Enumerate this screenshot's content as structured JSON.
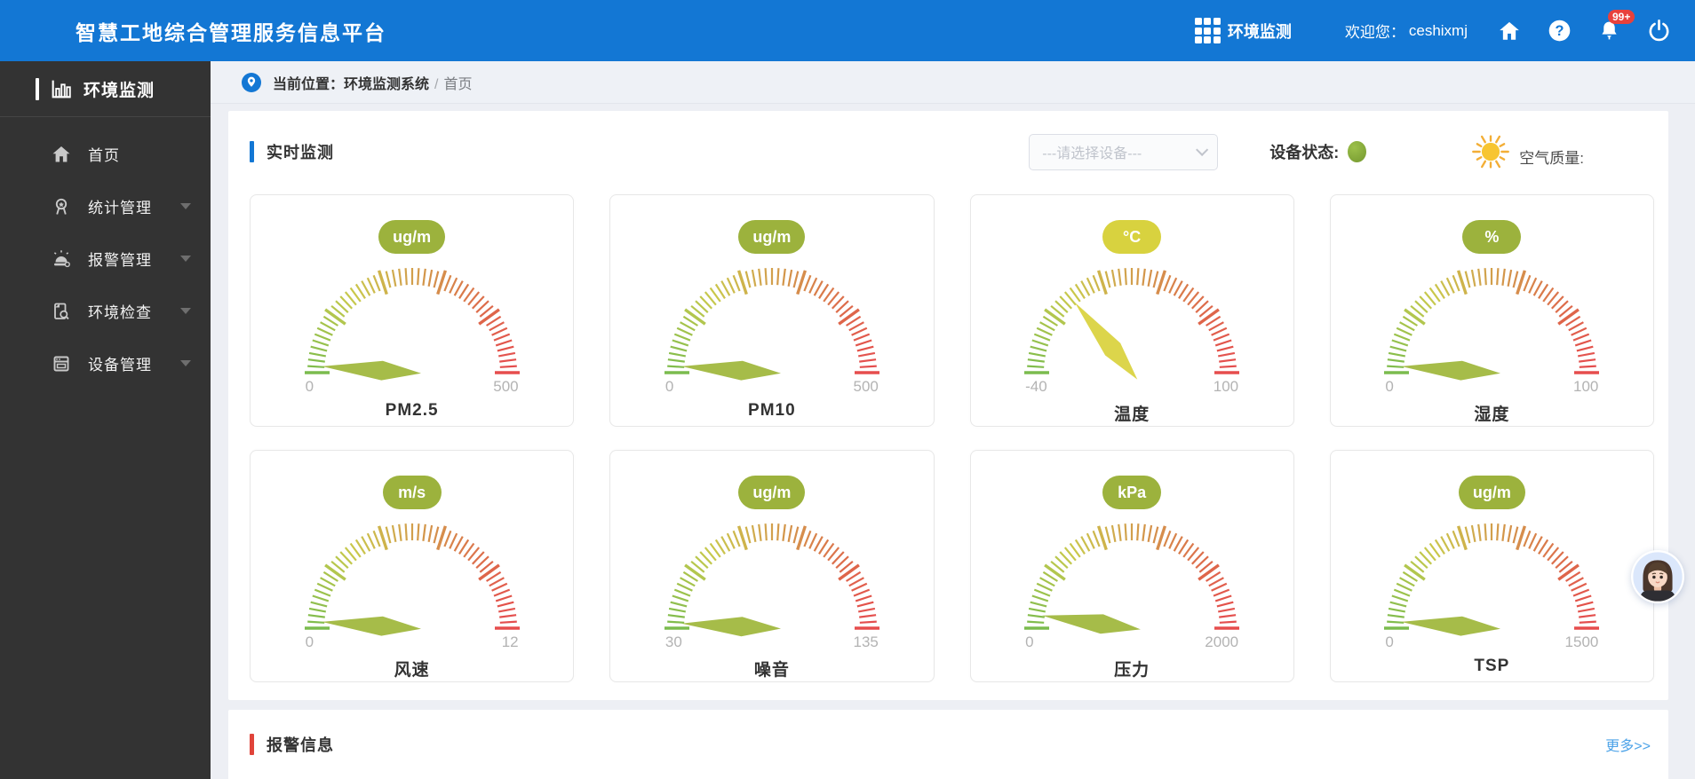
{
  "header": {
    "title": "智慧工地综合管理服务信息平台",
    "app_switcher_label": "环境监测",
    "welcome_label": "欢迎您：",
    "username": "ceshixmj",
    "notification_badge": "99+"
  },
  "sidebar": {
    "brand": "环境监测",
    "items": [
      {
        "label": "首页",
        "icon": "home-icon",
        "expandable": false
      },
      {
        "label": "统计管理",
        "icon": "statistics-icon",
        "expandable": true
      },
      {
        "label": "报警管理",
        "icon": "alarm-icon",
        "expandable": true
      },
      {
        "label": "环境检查",
        "icon": "inspection-icon",
        "expandable": true
      },
      {
        "label": "设备管理",
        "icon": "device-icon",
        "expandable": true
      }
    ]
  },
  "breadcrumb": {
    "prefix": "当前位置：",
    "system": "环境监测系统",
    "separator": "/",
    "current": "首页"
  },
  "monitor": {
    "section_title": "实时监测",
    "device_select_placeholder": "---请选择设备---",
    "device_status_label": "设备状态:",
    "device_status_color": "#7fa33c",
    "air_quality_label": "空气质量:"
  },
  "alarm": {
    "section_title": "报警信息",
    "more_label": "更多>>"
  },
  "colors": {
    "header_blue": "#1377d4",
    "sidebar_dark": "#333333",
    "accent_blue": "#1377d4",
    "accent_red": "#e0443a",
    "link_blue": "#4da3e8",
    "olive_green": "#9cb23d",
    "badge_yellow": "#d8d23f"
  },
  "chart_data": [
    {
      "type": "gauge",
      "title": "PM2.5",
      "unit": "ug/m",
      "min": 0,
      "max": 500,
      "value": 0,
      "needle_angle_deg": 176,
      "needle_color": "#a6bc49",
      "badge_color": "#9cb23d",
      "tick_gradient": [
        "#8db04f",
        "#ddd84e",
        "#f09a4e",
        "#e65050"
      ]
    },
    {
      "type": "gauge",
      "title": "PM10",
      "unit": "ug/m",
      "min": 0,
      "max": 500,
      "value": 0,
      "needle_angle_deg": 176,
      "needle_color": "#a6bc49",
      "badge_color": "#9cb23d",
      "tick_gradient": [
        "#8db04f",
        "#ddd84e",
        "#f09a4e",
        "#e65050"
      ]
    },
    {
      "type": "gauge",
      "title": "温度",
      "unit": "°C",
      "min": -40,
      "max": 100,
      "value": 0,
      "needle_angle_deg": 129,
      "needle_color": "#dcd54b",
      "badge_color": "#d8d23f",
      "tick_gradient": [
        "#8db04f",
        "#ddd84e",
        "#f09a4e",
        "#e65050"
      ]
    },
    {
      "type": "gauge",
      "title": "湿度",
      "unit": "%",
      "min": 0,
      "max": 100,
      "value": 0,
      "needle_angle_deg": 176,
      "needle_color": "#a6bc49",
      "badge_color": "#9cb23d",
      "tick_gradient": [
        "#8db04f",
        "#ddd84e",
        "#f09a4e",
        "#e65050"
      ]
    },
    {
      "type": "gauge",
      "title": "风速",
      "unit": "m/s",
      "min": 0,
      "max": 12,
      "value": 0,
      "needle_angle_deg": 176,
      "needle_color": "#a6bc49",
      "badge_color": "#9cb23d",
      "tick_gradient": [
        "#8db04f",
        "#ddd84e",
        "#f09a4e",
        "#e65050"
      ]
    },
    {
      "type": "gauge",
      "title": "噪音",
      "unit": "ug/m",
      "min": 30,
      "max": 135,
      "value": 30,
      "needle_angle_deg": 177,
      "needle_color": "#a6bc49",
      "badge_color": "#9cb23d",
      "tick_gradient": [
        "#8db04f",
        "#ddd84e",
        "#f09a4e",
        "#e65050"
      ]
    },
    {
      "type": "gauge",
      "title": "压力",
      "unit": "kPa",
      "min": 0,
      "max": 2000,
      "value": 0,
      "needle_angle_deg": 172,
      "needle_color": "#a6bc49",
      "badge_color": "#9cb23d",
      "tick_gradient": [
        "#8db04f",
        "#ddd84e",
        "#f09a4e",
        "#e65050"
      ]
    },
    {
      "type": "gauge",
      "title": "TSP",
      "unit": "ug/m",
      "min": 0,
      "max": 1500,
      "value": 0,
      "needle_angle_deg": 176,
      "needle_color": "#a6bc49",
      "badge_color": "#9cb23d",
      "tick_gradient": [
        "#8db04f",
        "#ddd84e",
        "#f09a4e",
        "#e65050"
      ]
    }
  ]
}
